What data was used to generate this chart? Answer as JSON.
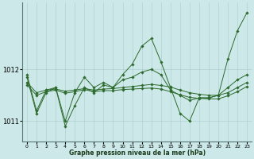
{
  "background_color": "#cce8e8",
  "grid_color_major": "#aacccc",
  "grid_color_minor": "#bbdddd",
  "line_color": "#2d6a2d",
  "xlabel": "Graphe pression niveau de la mer (hPa)",
  "ylim": [
    1010.6,
    1013.3
  ],
  "xlim": [
    -0.5,
    23.5
  ],
  "yticks": [
    1011,
    1012
  ],
  "xticks": [
    0,
    1,
    2,
    3,
    4,
    5,
    6,
    7,
    8,
    9,
    10,
    11,
    12,
    13,
    14,
    15,
    16,
    17,
    18,
    19,
    20,
    21,
    22,
    23
  ],
  "s0": [
    1011.85,
    1011.15,
    1011.55,
    1011.65,
    1010.9,
    1011.3,
    1011.65,
    1011.55,
    1011.7,
    1011.65,
    1011.9,
    1012.1,
    1012.45,
    1012.6,
    1012.15,
    1011.65,
    1011.15,
    1011.0,
    1011.45,
    1011.45,
    1011.5,
    1012.2,
    1012.75,
    1013.1
  ],
  "s1": [
    1011.75,
    1011.55,
    1011.6,
    1011.62,
    1011.58,
    1011.6,
    1011.63,
    1011.6,
    1011.62,
    1011.63,
    1011.65,
    1011.67,
    1011.69,
    1011.71,
    1011.69,
    1011.66,
    1011.6,
    1011.55,
    1011.52,
    1011.5,
    1011.5,
    1011.55,
    1011.65,
    1011.75
  ],
  "s2": [
    1011.7,
    1011.5,
    1011.57,
    1011.6,
    1011.54,
    1011.57,
    1011.61,
    1011.57,
    1011.59,
    1011.59,
    1011.61,
    1011.62,
    1011.63,
    1011.64,
    1011.62,
    1011.57,
    1011.51,
    1011.46,
    1011.44,
    1011.43,
    1011.43,
    1011.49,
    1011.57,
    1011.67
  ],
  "s3": [
    1011.9,
    1011.2,
    1011.6,
    1011.65,
    1011.0,
    1011.55,
    1011.85,
    1011.65,
    1011.75,
    1011.65,
    1011.8,
    1011.85,
    1011.95,
    1012.0,
    1011.9,
    1011.6,
    1011.5,
    1011.4,
    1011.45,
    1011.45,
    1011.5,
    1011.65,
    1011.8,
    1011.9
  ]
}
